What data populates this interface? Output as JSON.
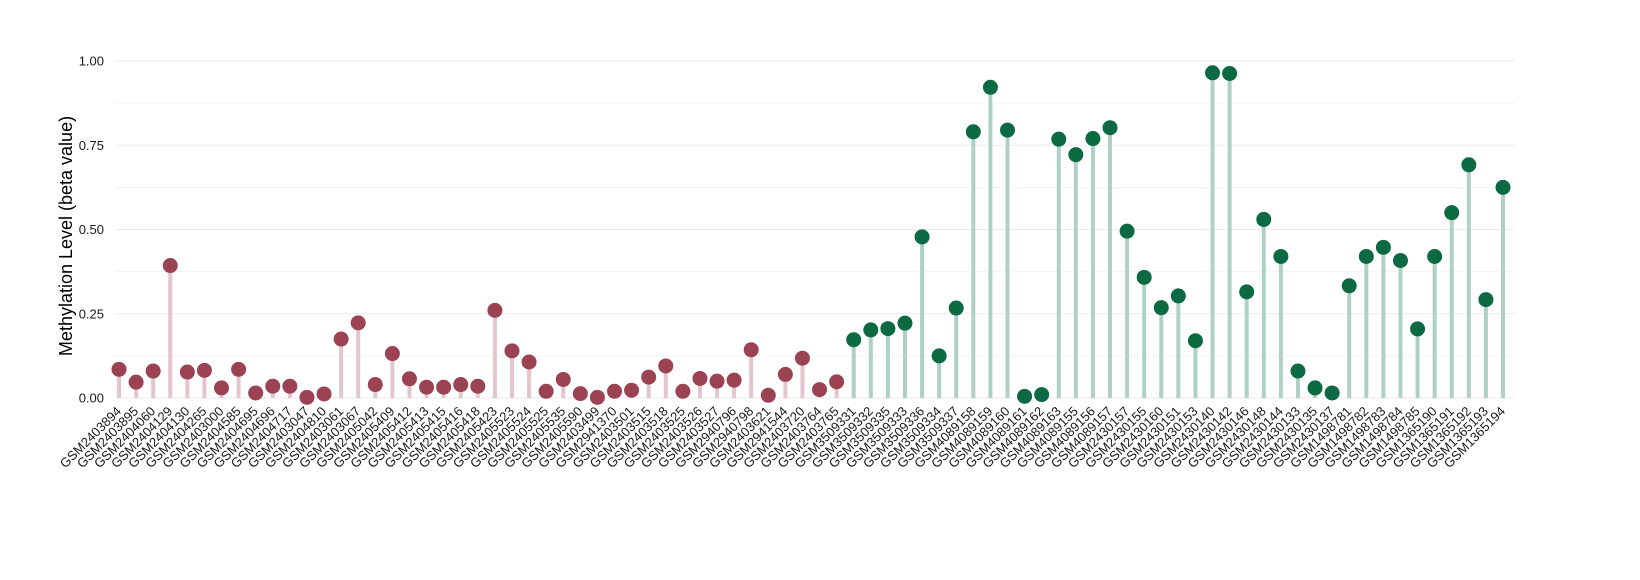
{
  "chart_data": {
    "type": "lollipop",
    "ylabel": "Methylation Level (beta value)",
    "ylim": [
      0,
      1.0
    ],
    "yticks": [
      "0.00",
      "0.25",
      "0.50",
      "0.75",
      "1.00"
    ],
    "ytick_values": [
      0,
      0.25,
      0.5,
      0.75,
      1.0
    ],
    "grid": true,
    "groups": [
      {
        "point_color": "#9b4352",
        "stem_color": "#e3c6cc"
      },
      {
        "point_color": "#0c6a42",
        "stem_color": "#afd1c3"
      }
    ],
    "categories": [
      "GSM2403894",
      "GSM2403895",
      "GSM2404060",
      "GSM2404129",
      "GSM2404130",
      "GSM2404265",
      "GSM2403000",
      "GSM2404585",
      "GSM2404695",
      "GSM2404696",
      "GSM2404717",
      "GSM2403047",
      "GSM2404810",
      "GSM2403061",
      "GSM2403067",
      "GSM2405042",
      "GSM2405409",
      "GSM2405412",
      "GSM2405413",
      "GSM2405415",
      "GSM2405416",
      "GSM2405418",
      "GSM2405423",
      "GSM2405523",
      "GSM2405524",
      "GSM2405525",
      "GSM2405535",
      "GSM2405590",
      "GSM2403499",
      "GSM2941370",
      "GSM2403501",
      "GSM2403515",
      "GSM2403518",
      "GSM2403525",
      "GSM2403526",
      "GSM2403527",
      "GSM2940796",
      "GSM2940798",
      "GSM2403621",
      "GSM2941544",
      "GSM2403720",
      "GSM2403764",
      "GSM2403765",
      "GSM3509331",
      "GSM3509332",
      "GSM3509335",
      "GSM3509333",
      "GSM3509336",
      "GSM3509334",
      "GSM3509337",
      "GSM4089158",
      "GSM4089159",
      "GSM4089160",
      "GSM4089161",
      "GSM4089162",
      "GSM4089163",
      "GSM4089155",
      "GSM4089156",
      "GSM4089157",
      "GSM2430157",
      "GSM2430155",
      "GSM2430160",
      "GSM2430151",
      "GSM2430153",
      "GSM2430140",
      "GSM2430142",
      "GSM2430146",
      "GSM2430148",
      "GSM2430144",
      "GSM2430133",
      "GSM2430135",
      "GSM2430137",
      "GSM1498781",
      "GSM1498782",
      "GSM1498783",
      "GSM1498784",
      "GSM1498785",
      "GSM1365190",
      "GSM1365191",
      "GSM1365192",
      "GSM1365193",
      "GSM1365194"
    ],
    "group_index": [
      0,
      0,
      0,
      0,
      0,
      0,
      0,
      0,
      0,
      0,
      0,
      0,
      0,
      0,
      0,
      0,
      0,
      0,
      0,
      0,
      0,
      0,
      0,
      0,
      0,
      0,
      0,
      0,
      0,
      0,
      0,
      0,
      0,
      0,
      0,
      0,
      0,
      0,
      0,
      0,
      0,
      0,
      0,
      1,
      1,
      1,
      1,
      1,
      1,
      1,
      1,
      1,
      1,
      1,
      1,
      1,
      1,
      1,
      1,
      1,
      1,
      1,
      1,
      1,
      1,
      1,
      1,
      1,
      1,
      1,
      1,
      1,
      1,
      1,
      1,
      1,
      1,
      1,
      1,
      1,
      1,
      1
    ],
    "values": [
      0.085,
      0.047,
      0.08,
      0.393,
      0.077,
      0.082,
      0.03,
      0.085,
      0.015,
      0.035,
      0.035,
      0.002,
      0.012,
      0.175,
      0.223,
      0.04,
      0.132,
      0.057,
      0.032,
      0.032,
      0.04,
      0.035,
      0.26,
      0.14,
      0.107,
      0.02,
      0.055,
      0.013,
      0.002,
      0.02,
      0.023,
      0.062,
      0.095,
      0.02,
      0.058,
      0.05,
      0.053,
      0.143,
      0.008,
      0.07,
      0.118,
      0.025,
      0.048,
      0.173,
      0.202,
      0.206,
      0.222,
      0.478,
      0.125,
      0.267,
      0.79,
      0.922,
      0.795,
      0.005,
      0.01,
      0.768,
      0.722,
      0.77,
      0.802,
      0.495,
      0.358,
      0.268,
      0.303,
      0.17,
      0.965,
      0.963,
      0.315,
      0.53,
      0.42,
      0.08,
      0.03,
      0.015,
      0.333,
      0.42,
      0.447,
      0.408,
      0.205,
      0.42,
      0.55,
      0.692,
      0.292,
      0.625
    ]
  }
}
